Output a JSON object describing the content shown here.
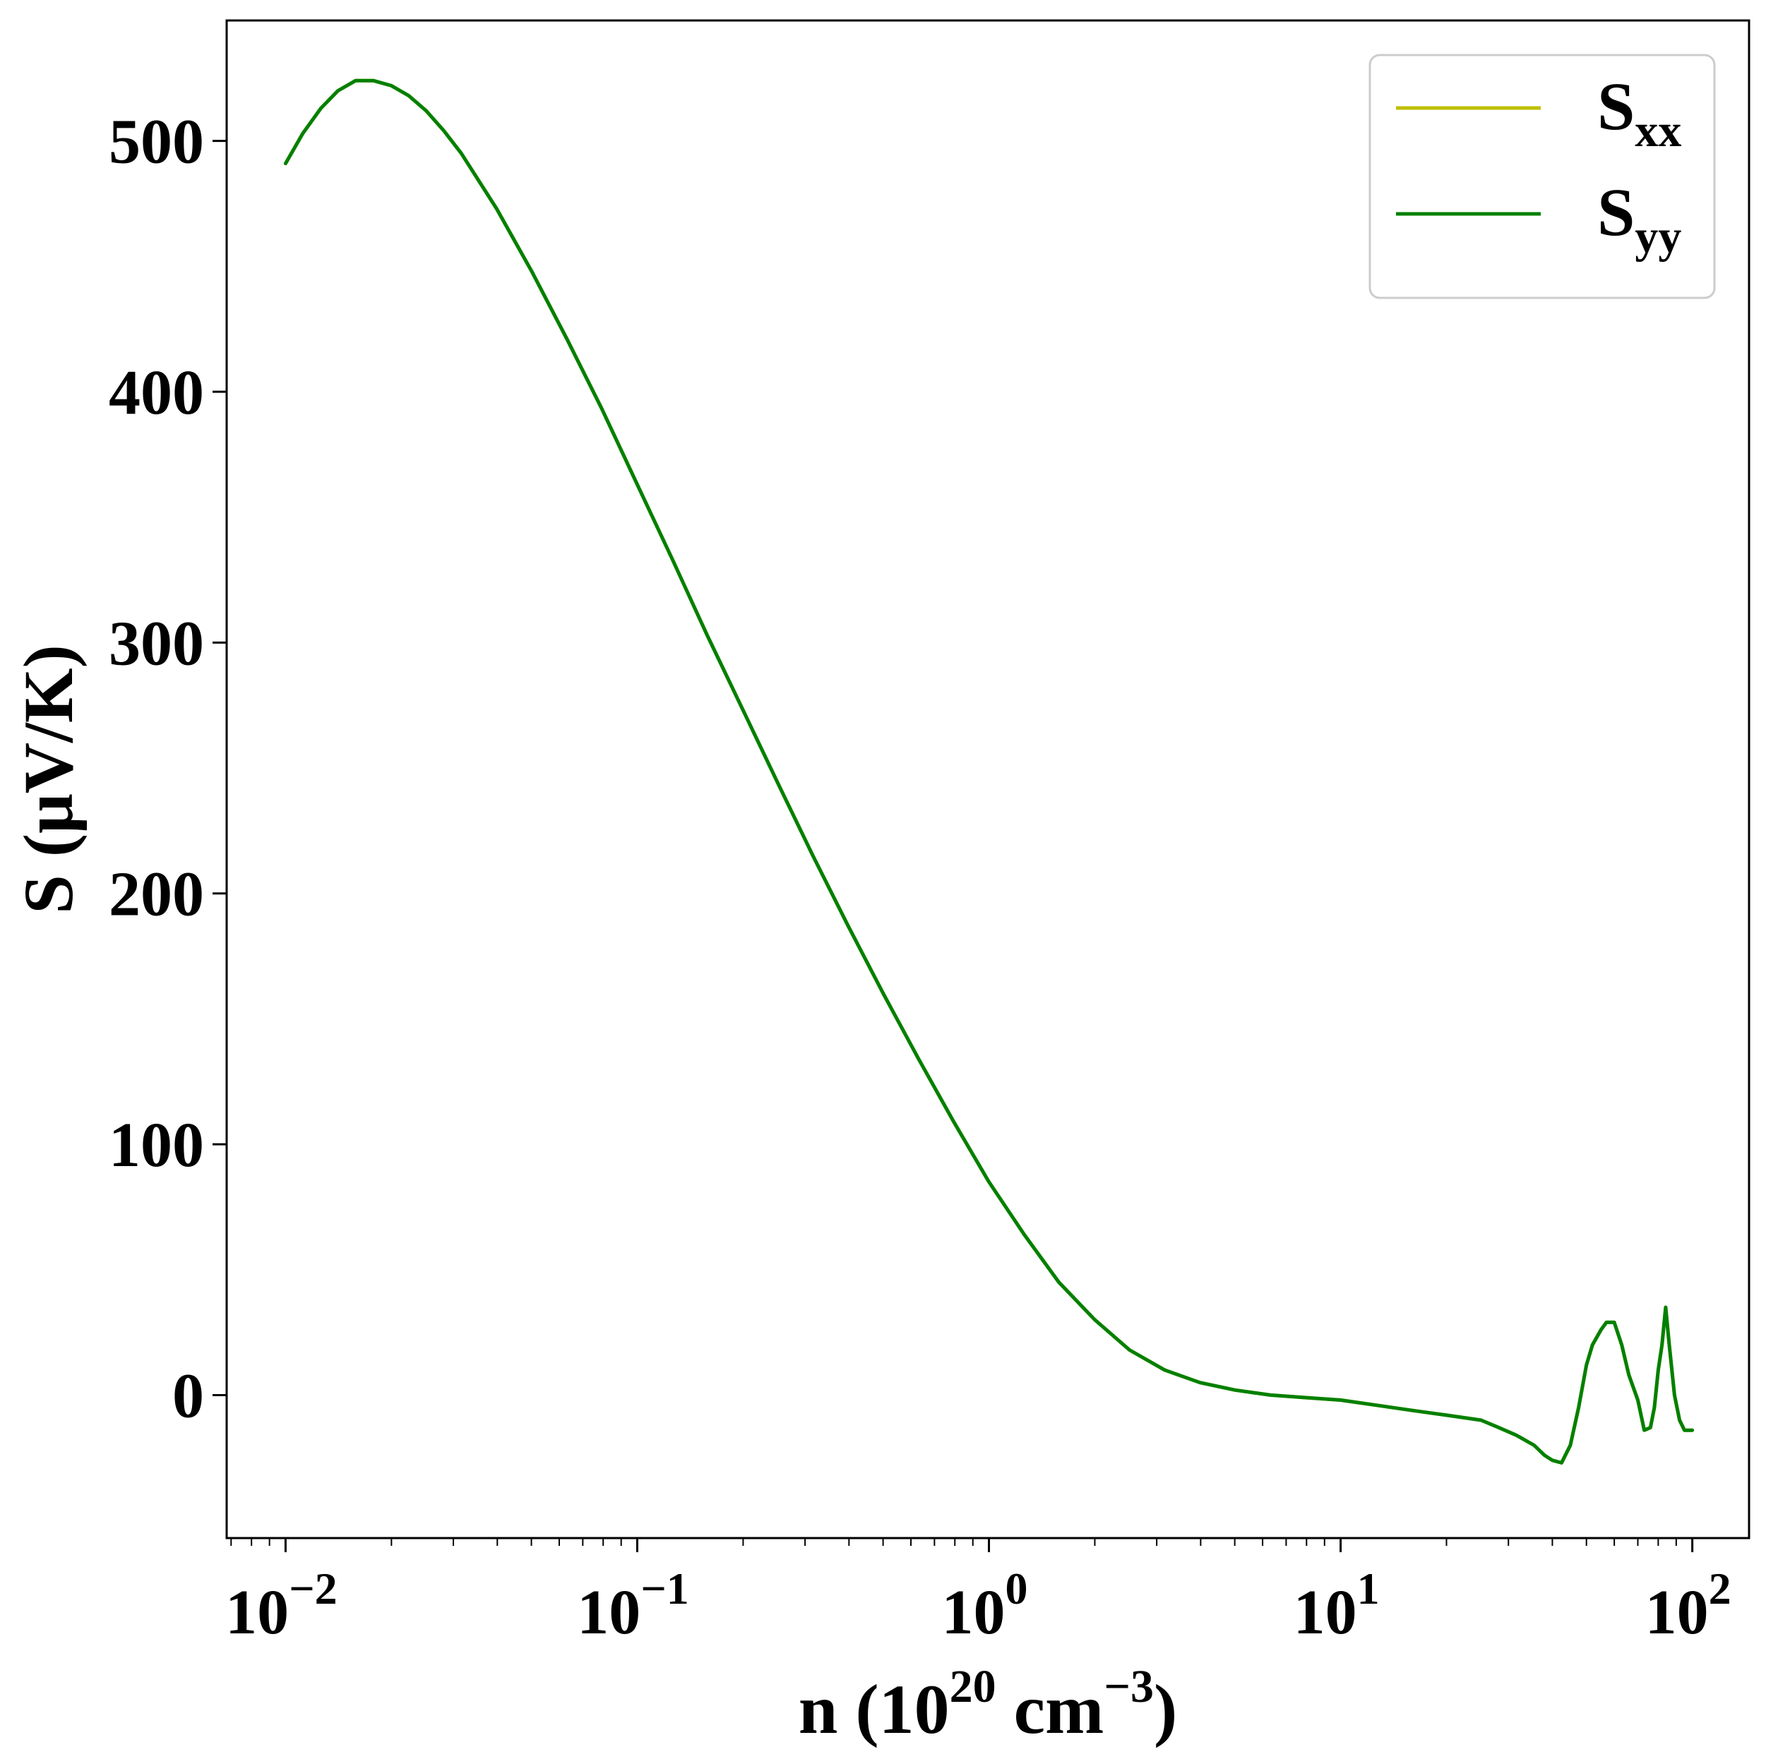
{
  "colors": {
    "Sxx": "#bfbf00",
    "Syy": "#008000",
    "axes": "#000000",
    "background": "#ffffff"
  },
  "chart_data": {
    "type": "line",
    "title": "",
    "x_scale": "log",
    "xlabel": {
      "base": "n (10",
      "exp1": "20",
      "mid": " cm",
      "exp2": "−3",
      "end": ")"
    },
    "ylabel": "S (μV/K)",
    "xlim": [
      0.0068,
      145
    ],
    "ylim": [
      -57,
      548
    ],
    "grid": false,
    "legend_position": "upper right",
    "x_ticks": [
      {
        "value": 0.01,
        "base": "10",
        "exp": "−2"
      },
      {
        "value": 0.1,
        "base": "10",
        "exp": "−1"
      },
      {
        "value": 1,
        "base": "10",
        "exp": "0"
      },
      {
        "value": 10,
        "base": "10",
        "exp": "1"
      },
      {
        "value": 100,
        "base": "10",
        "exp": "2"
      }
    ],
    "y_ticks": [
      {
        "value": 0,
        "label": "0"
      },
      {
        "value": 100,
        "label": "100"
      },
      {
        "value": 200,
        "label": "200"
      },
      {
        "value": 300,
        "label": "300"
      },
      {
        "value": 400,
        "label": "400"
      },
      {
        "value": 500,
        "label": "500"
      }
    ],
    "series": [
      {
        "name": {
          "base": "S",
          "sub": "xx"
        },
        "color": "#bfbf00",
        "x": [
          0.01,
          0.0112,
          0.0126,
          0.0141,
          0.0158,
          0.0178,
          0.02,
          0.0224,
          0.0251,
          0.0282,
          0.0316,
          0.0398,
          0.0501,
          0.0631,
          0.0794,
          0.1,
          0.126,
          0.158,
          0.2,
          0.251,
          0.316,
          0.398,
          0.501,
          0.631,
          0.794,
          1.0,
          1.26,
          1.58,
          2.0,
          2.51,
          3.16,
          3.98,
          5.01,
          6.31,
          7.94,
          10.0,
          12.6,
          15.8,
          20.0,
          25.1,
          28.2,
          31.6,
          35.5,
          38.0,
          40.0,
          42.5,
          45.0,
          47.5,
          50.0,
          52.0,
          55.0,
          57.0,
          60.0,
          63.0,
          66.0,
          70.0,
          73.0,
          76.0,
          78.0,
          80.0,
          82.0,
          84.0,
          86.0,
          89.0,
          92.0,
          95.0,
          100.0
        ],
        "y": [
          491,
          503,
          513,
          520,
          524,
          524,
          522,
          518,
          512,
          504,
          495,
          473,
          448,
          421,
          393,
          363,
          333,
          303,
          273,
          244,
          215,
          187,
          160,
          134,
          109,
          85,
          64,
          45,
          30,
          18,
          10,
          5,
          2,
          0,
          -1,
          -2,
          -4,
          -6,
          -8,
          -10,
          -13,
          -16,
          -20,
          -24,
          -26,
          -27,
          -20,
          -5,
          12,
          20,
          26,
          29,
          29,
          20,
          8,
          -2,
          -14,
          -13,
          -5,
          10,
          20,
          35,
          20,
          0,
          -10,
          -14,
          -14
        ]
      },
      {
        "name": {
          "base": "S",
          "sub": "yy"
        },
        "color": "#008000",
        "x": [
          0.01,
          0.0112,
          0.0126,
          0.0141,
          0.0158,
          0.0178,
          0.02,
          0.0224,
          0.0251,
          0.0282,
          0.0316,
          0.0398,
          0.0501,
          0.0631,
          0.0794,
          0.1,
          0.126,
          0.158,
          0.2,
          0.251,
          0.316,
          0.398,
          0.501,
          0.631,
          0.794,
          1.0,
          1.26,
          1.58,
          2.0,
          2.51,
          3.16,
          3.98,
          5.01,
          6.31,
          7.94,
          10.0,
          12.6,
          15.8,
          20.0,
          25.1,
          28.2,
          31.6,
          35.5,
          38.0,
          40.0,
          42.5,
          45.0,
          47.5,
          50.0,
          52.0,
          55.0,
          57.0,
          60.0,
          63.0,
          66.0,
          70.0,
          73.0,
          76.0,
          78.0,
          80.0,
          82.0,
          84.0,
          86.0,
          89.0,
          92.0,
          95.0,
          100.0
        ],
        "y": [
          491,
          503,
          513,
          520,
          524,
          524,
          522,
          518,
          512,
          504,
          495,
          473,
          448,
          421,
          393,
          363,
          333,
          303,
          273,
          244,
          215,
          187,
          160,
          134,
          109,
          85,
          64,
          45,
          30,
          18,
          10,
          5,
          2,
          0,
          -1,
          -2,
          -4,
          -6,
          -8,
          -10,
          -13,
          -16,
          -20,
          -24,
          -26,
          -27,
          -20,
          -5,
          12,
          20,
          26,
          29,
          29,
          20,
          8,
          -2,
          -14,
          -13,
          -5,
          10,
          20,
          35,
          20,
          0,
          -10,
          -14,
          -14
        ]
      }
    ]
  }
}
